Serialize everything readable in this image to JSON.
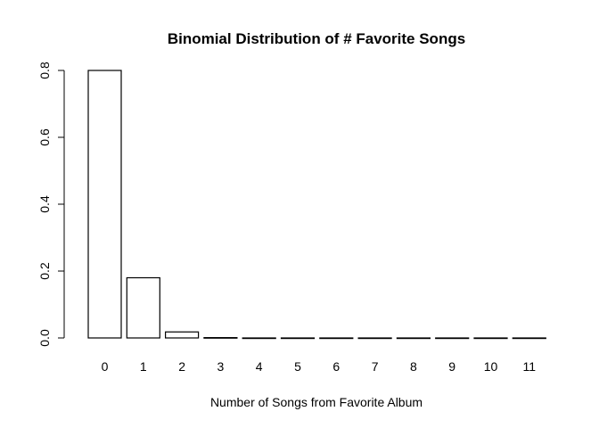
{
  "chart_data": {
    "type": "bar",
    "title": "Binomial Distribution of # Favorite Songs",
    "xlabel": "Number of Songs from Favorite Album",
    "ylabel": "",
    "categories": [
      "0",
      "1",
      "2",
      "3",
      "4",
      "5",
      "6",
      "7",
      "8",
      "9",
      "10",
      "11"
    ],
    "values": [
      0.8,
      0.18,
      0.018,
      0.001,
      0.0,
      0.0,
      0.0,
      0.0,
      0.0,
      0.0,
      0.0,
      0.0
    ],
    "ylim": [
      0,
      0.8
    ],
    "yticks": [
      "0.0",
      "0.2",
      "0.4",
      "0.6",
      "0.8"
    ],
    "grid": false,
    "bar_fill": "#ffffff",
    "bar_stroke": "#000000"
  }
}
